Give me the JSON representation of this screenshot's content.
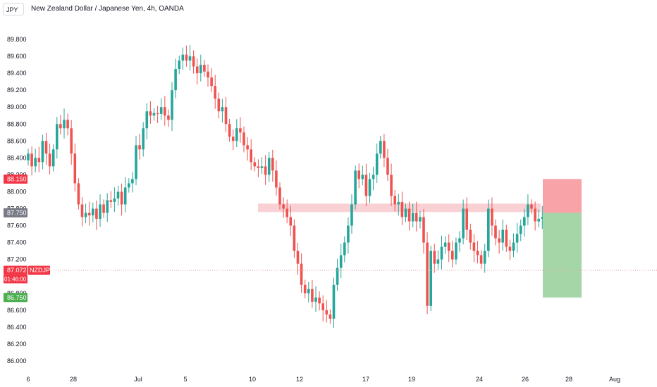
{
  "header": {
    "symbol_box": "JPY",
    "title": "New Zealand Dollar / Japanese Yen, 4h, OANDA"
  },
  "colors": {
    "up": "#26a69a",
    "down": "#ef5350",
    "zone": "#f8c9cd",
    "stop_box": "#f7a3a8",
    "target_box": "#a5d6a7",
    "price_line": "#f3a4a8"
  },
  "chart_data": {
    "type": "candlestick",
    "symbol": "NZDJPY",
    "ylim": [
      85.95,
      89.9
    ],
    "y_ticks": [
      "89.800",
      "89.600",
      "89.400",
      "89.200",
      "89.000",
      "88.800",
      "88.600",
      "88.400",
      "88.200",
      "88.000",
      "87.800",
      "87.600",
      "87.400",
      "87.200",
      "87.000",
      "86.800",
      "86.600",
      "86.400",
      "86.200",
      "86.000"
    ],
    "x_ticks": [
      "6",
      "28",
      "Jul",
      "5",
      "10",
      "12",
      "17",
      "19",
      "24",
      "26",
      "28",
      "Aug"
    ],
    "price_tags": [
      {
        "name": "stop-price-tag",
        "label": "88.150",
        "value": 88.15,
        "color": "#f23645"
      },
      {
        "name": "entry-price-tag",
        "label": "87.750",
        "value": 87.75,
        "color": "#787b86"
      },
      {
        "name": "current-price-tag",
        "label": "87.072",
        "value": 87.072,
        "color": "#f23645"
      },
      {
        "name": "target-price-tag",
        "label": "86.750",
        "value": 86.75,
        "color": "#4caf50"
      }
    ],
    "symbol_tag": "NZDJPY",
    "countdown": "01:46:00",
    "current_price": 87.072,
    "resistance_zone": [
      87.76,
      87.86
    ],
    "stop_level": 88.15,
    "entry_level": 87.75,
    "target_level": 86.75,
    "closes": [
      88.45,
      88.3,
      88.4,
      88.35,
      88.6,
      88.45,
      88.3,
      88.5,
      88.8,
      88.75,
      88.85,
      88.75,
      88.45,
      88.1,
      87.85,
      87.7,
      87.75,
      87.72,
      87.8,
      87.68,
      87.85,
      87.75,
      87.9,
      87.88,
      87.92,
      88.0,
      87.85,
      88.05,
      88.1,
      88.15,
      88.55,
      88.5,
      88.75,
      88.95,
      88.9,
      88.93,
      88.92,
      89.0,
      88.9,
      88.85,
      89.2,
      89.45,
      89.55,
      89.62,
      89.55,
      89.6,
      89.48,
      89.4,
      89.5,
      89.42,
      89.35,
      89.25,
      89.1,
      88.95,
      89.0,
      88.8,
      88.65,
      88.6,
      88.75,
      88.7,
      88.55,
      88.5,
      88.35,
      88.3,
      88.28,
      88.3,
      88.2,
      88.4,
      88.25,
      88.05,
      87.85,
      87.8,
      87.7,
      87.6,
      87.3,
      87.15,
      86.9,
      86.8,
      86.85,
      86.7,
      86.75,
      86.68,
      86.6,
      86.55,
      86.5,
      86.9,
      87.1,
      87.25,
      87.4,
      87.6,
      87.85,
      88.25,
      88.15,
      88.2,
      87.95,
      88.15,
      88.2,
      88.45,
      88.6,
      88.4,
      88.2,
      87.95,
      87.85,
      87.88,
      87.7,
      87.8,
      87.65,
      87.75,
      87.65,
      87.7,
      87.4,
      86.65,
      87.3,
      87.15,
      87.2,
      87.35,
      87.4,
      87.3,
      87.2,
      87.4,
      87.45,
      87.8,
      87.55,
      87.4,
      87.3,
      87.25,
      87.15,
      87.3,
      87.8,
      87.6,
      87.45,
      87.4,
      87.55,
      87.35,
      87.3,
      87.4,
      87.5,
      87.6,
      87.7,
      87.85,
      87.8,
      87.65,
      87.68,
      87.7,
      87.6,
      87.15,
      87.05,
      87.2,
      87.072
    ]
  }
}
